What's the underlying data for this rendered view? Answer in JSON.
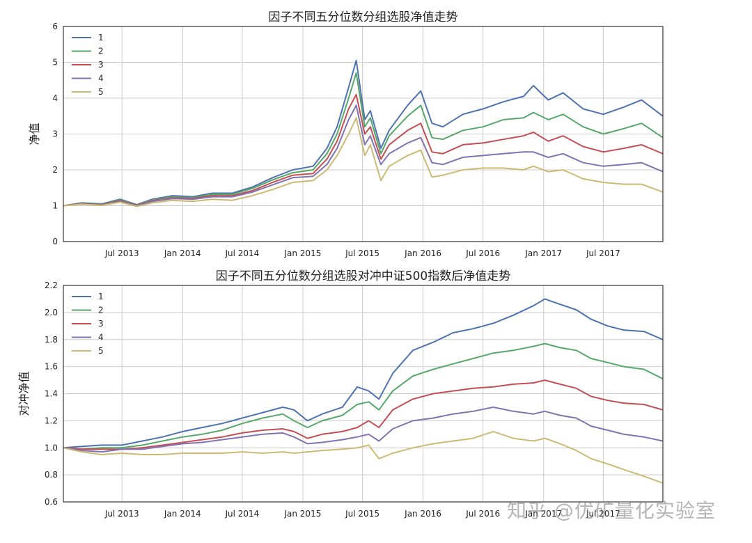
{
  "colors": {
    "series": [
      "#4C72B0",
      "#55A868",
      "#C44E52",
      "#8172B2",
      "#CCB974"
    ],
    "grid": "#cccccc",
    "frame": "#333333",
    "text": "#222222"
  },
  "watermark": "知乎 @优矿量化实验室",
  "chart_data": [
    {
      "type": "line",
      "title": "因子不同五分位数分组选股净值走势",
      "xlabel": "",
      "ylabel": "净值",
      "xlim": [
        "2013-01-04",
        "2017-12-29"
      ],
      "ylim": [
        0,
        6
      ],
      "yticks": [
        0,
        1,
        2,
        3,
        4,
        5,
        6
      ],
      "xticks": [
        {
          "date": "2013-07-01",
          "label": "Jul 2013"
        },
        {
          "date": "2014-01-01",
          "label": "Jan 2014"
        },
        {
          "date": "2014-07-01",
          "label": "Jul 2014"
        },
        {
          "date": "2015-01-01",
          "label": "Jan 2015"
        },
        {
          "date": "2015-07-01",
          "label": "Jul 2015"
        },
        {
          "date": "2016-01-01",
          "label": "Jan 2016"
        },
        {
          "date": "2016-07-01",
          "label": "Jul 2016"
        },
        {
          "date": "2017-01-01",
          "label": "Jan 2017"
        },
        {
          "date": "2017-07-01",
          "label": "Jul 2017"
        }
      ],
      "grid": true,
      "legend_position": "top-left",
      "x": [
        "2013-01-04",
        "2013-03-01",
        "2013-05-01",
        "2013-06-25",
        "2013-08-15",
        "2013-10-01",
        "2013-12-01",
        "2014-02-01",
        "2014-04-01",
        "2014-06-01",
        "2014-08-01",
        "2014-10-01",
        "2014-12-01",
        "2015-02-01",
        "2015-03-15",
        "2015-04-15",
        "2015-05-20",
        "2015-06-12",
        "2015-07-08",
        "2015-07-25",
        "2015-08-26",
        "2015-09-20",
        "2015-11-15",
        "2015-12-25",
        "2016-01-28",
        "2016-03-01",
        "2016-05-01",
        "2016-07-01",
        "2016-09-01",
        "2016-11-01",
        "2016-12-01",
        "2017-01-15",
        "2017-03-01",
        "2017-05-01",
        "2017-07-01",
        "2017-09-01",
        "2017-10-25",
        "2017-12-29"
      ],
      "series": [
        {
          "name": "1",
          "values": [
            1.0,
            1.08,
            1.05,
            1.18,
            1.03,
            1.18,
            1.28,
            1.25,
            1.35,
            1.35,
            1.52,
            1.78,
            2.0,
            2.1,
            2.6,
            3.2,
            4.3,
            5.05,
            3.4,
            3.65,
            2.6,
            3.1,
            3.8,
            4.2,
            3.3,
            3.2,
            3.55,
            3.7,
            3.9,
            4.05,
            4.35,
            3.95,
            4.15,
            3.7,
            3.55,
            3.75,
            3.95,
            3.5
          ]
        },
        {
          "name": "2",
          "values": [
            1.0,
            1.07,
            1.04,
            1.16,
            1.02,
            1.16,
            1.25,
            1.22,
            1.32,
            1.32,
            1.48,
            1.72,
            1.92,
            2.0,
            2.45,
            3.0,
            4.0,
            4.7,
            3.2,
            3.45,
            2.45,
            2.95,
            3.5,
            3.8,
            2.9,
            2.85,
            3.1,
            3.2,
            3.4,
            3.45,
            3.6,
            3.4,
            3.55,
            3.2,
            3.0,
            3.15,
            3.3,
            2.9
          ]
        },
        {
          "name": "3",
          "values": [
            1.0,
            1.06,
            1.03,
            1.14,
            1.01,
            1.14,
            1.22,
            1.2,
            1.28,
            1.28,
            1.42,
            1.65,
            1.85,
            1.9,
            2.3,
            2.8,
            3.7,
            4.1,
            3.0,
            3.2,
            2.3,
            2.7,
            3.1,
            3.3,
            2.5,
            2.45,
            2.7,
            2.75,
            2.85,
            2.95,
            3.05,
            2.8,
            2.95,
            2.65,
            2.5,
            2.6,
            2.7,
            2.45
          ]
        },
        {
          "name": "4",
          "values": [
            1.0,
            1.05,
            1.02,
            1.12,
            1.0,
            1.12,
            1.2,
            1.18,
            1.25,
            1.25,
            1.38,
            1.58,
            1.78,
            1.82,
            2.15,
            2.6,
            3.4,
            3.8,
            2.7,
            2.95,
            2.15,
            2.45,
            2.75,
            2.9,
            2.2,
            2.15,
            2.35,
            2.4,
            2.45,
            2.5,
            2.5,
            2.35,
            2.45,
            2.2,
            2.1,
            2.15,
            2.2,
            1.95
          ]
        },
        {
          "name": "5",
          "values": [
            1.0,
            1.04,
            1.01,
            1.1,
            0.98,
            1.08,
            1.15,
            1.12,
            1.18,
            1.15,
            1.28,
            1.45,
            1.65,
            1.7,
            2.0,
            2.4,
            3.0,
            3.45,
            2.4,
            2.7,
            1.7,
            2.1,
            2.4,
            2.55,
            1.8,
            1.85,
            2.0,
            2.05,
            2.05,
            2.0,
            2.1,
            1.95,
            2.0,
            1.75,
            1.65,
            1.6,
            1.6,
            1.38
          ]
        }
      ]
    },
    {
      "type": "line",
      "title": "因子不同五分位数分组选股对冲中证500指数后净值走势",
      "xlabel": "",
      "ylabel": "对冲净值",
      "xlim": [
        "2013-01-04",
        "2017-12-29"
      ],
      "ylim": [
        0.6,
        2.2
      ],
      "yticks": [
        0.6,
        0.8,
        1.0,
        1.2,
        1.4,
        1.6,
        1.8,
        2.0,
        2.2
      ],
      "xticks": [
        {
          "date": "2013-07-01",
          "label": "Jul 2013"
        },
        {
          "date": "2014-01-01",
          "label": "Jan 2014"
        },
        {
          "date": "2014-07-01",
          "label": "Jul 2014"
        },
        {
          "date": "2015-01-01",
          "label": "Jan 2015"
        },
        {
          "date": "2015-07-01",
          "label": "Jul 2015"
        },
        {
          "date": "2016-01-01",
          "label": "Jan 2016"
        },
        {
          "date": "2016-07-01",
          "label": "Jul 2016"
        },
        {
          "date": "2017-01-01",
          "label": "Jan 2017"
        },
        {
          "date": "2017-07-01",
          "label": "Jul 2017"
        }
      ],
      "grid": true,
      "legend_position": "top-left",
      "x": [
        "2013-01-04",
        "2013-03-01",
        "2013-05-01",
        "2013-07-01",
        "2013-09-01",
        "2013-11-01",
        "2014-01-01",
        "2014-03-01",
        "2014-05-01",
        "2014-07-01",
        "2014-09-01",
        "2014-11-01",
        "2014-12-05",
        "2015-01-15",
        "2015-03-01",
        "2015-05-01",
        "2015-06-15",
        "2015-07-20",
        "2015-08-20",
        "2015-10-01",
        "2015-12-01",
        "2016-02-01",
        "2016-04-01",
        "2016-06-01",
        "2016-08-01",
        "2016-10-01",
        "2016-12-01",
        "2017-01-05",
        "2017-02-20",
        "2017-04-10",
        "2017-05-25",
        "2017-07-15",
        "2017-09-01",
        "2017-11-01",
        "2017-12-29"
      ],
      "series": [
        {
          "name": "1",
          "values": [
            1.0,
            1.01,
            1.02,
            1.02,
            1.05,
            1.08,
            1.12,
            1.15,
            1.18,
            1.22,
            1.26,
            1.3,
            1.28,
            1.2,
            1.25,
            1.3,
            1.45,
            1.42,
            1.36,
            1.55,
            1.72,
            1.78,
            1.85,
            1.88,
            1.92,
            1.98,
            2.05,
            2.1,
            2.06,
            2.02,
            1.95,
            1.9,
            1.87,
            1.86,
            1.8
          ]
        },
        {
          "name": "2",
          "values": [
            1.0,
            0.99,
            1.0,
            1.0,
            1.02,
            1.05,
            1.08,
            1.1,
            1.13,
            1.18,
            1.22,
            1.25,
            1.2,
            1.15,
            1.2,
            1.24,
            1.32,
            1.34,
            1.28,
            1.42,
            1.53,
            1.58,
            1.62,
            1.66,
            1.7,
            1.72,
            1.75,
            1.77,
            1.74,
            1.72,
            1.66,
            1.63,
            1.6,
            1.58,
            1.51
          ]
        },
        {
          "name": "3",
          "values": [
            1.0,
            0.99,
            0.99,
            0.99,
            1.0,
            1.02,
            1.04,
            1.06,
            1.08,
            1.11,
            1.13,
            1.14,
            1.12,
            1.07,
            1.1,
            1.12,
            1.15,
            1.2,
            1.15,
            1.28,
            1.36,
            1.4,
            1.42,
            1.44,
            1.45,
            1.47,
            1.48,
            1.5,
            1.47,
            1.44,
            1.38,
            1.35,
            1.33,
            1.32,
            1.28
          ]
        },
        {
          "name": "4",
          "values": [
            1.0,
            0.98,
            0.97,
            0.99,
            0.99,
            1.01,
            1.03,
            1.04,
            1.06,
            1.08,
            1.1,
            1.11,
            1.08,
            1.03,
            1.04,
            1.06,
            1.08,
            1.1,
            1.05,
            1.14,
            1.2,
            1.22,
            1.25,
            1.27,
            1.3,
            1.27,
            1.25,
            1.27,
            1.24,
            1.22,
            1.16,
            1.13,
            1.1,
            1.08,
            1.05
          ]
        },
        {
          "name": "5",
          "values": [
            1.0,
            0.97,
            0.95,
            0.96,
            0.95,
            0.95,
            0.96,
            0.96,
            0.96,
            0.97,
            0.96,
            0.97,
            0.96,
            0.97,
            0.98,
            0.99,
            1.0,
            1.02,
            0.92,
            0.96,
            1.0,
            1.03,
            1.05,
            1.07,
            1.12,
            1.07,
            1.05,
            1.07,
            1.03,
            0.98,
            0.92,
            0.88,
            0.84,
            0.79,
            0.74
          ]
        }
      ]
    }
  ]
}
